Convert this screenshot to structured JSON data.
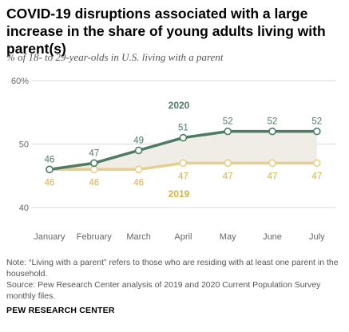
{
  "title": "COVID-19 disruptions associated with a large increase in the share of young adults living with parent(s)",
  "subtitle": "% of 18- to 29-year-olds in U.S. living with a parent",
  "note": "Note: “Living with a parent” refers to those who are residing with at least one parent in the household.",
  "source": "Source: Pew Research Center analysis of 2019 and 2020 Current Population Survey monthly files.",
  "organization": "PEW RESEARCH CENTER",
  "colors": {
    "series_2020": "#4c7c64",
    "series_2019": "#e6cf8a",
    "label_2019": "#d4b24a",
    "fill_between": "#efede6",
    "grid": "#d9d9d9",
    "axis_text": "#666666"
  },
  "chart_data": {
    "type": "line",
    "title": "COVID-19 disruptions associated with a large increase in the share of young adults living with parent(s)",
    "subtitle": "% of 18- to 29-year-olds in U.S. living with a parent",
    "categories": [
      "January",
      "February",
      "March",
      "April",
      "May",
      "June",
      "July"
    ],
    "ylim": [
      40,
      60
    ],
    "yticks": [
      40,
      50,
      60
    ],
    "ytick_labels": [
      "40",
      "50",
      "60%"
    ],
    "grid": true,
    "area_between_series": true,
    "series": [
      {
        "name": "2020",
        "values": [
          46,
          47,
          49,
          51,
          52,
          52,
          52
        ],
        "label_position": "above"
      },
      {
        "name": "2019",
        "values": [
          46,
          46,
          46,
          47,
          47,
          47,
          47
        ],
        "label_position": "below"
      }
    ]
  }
}
